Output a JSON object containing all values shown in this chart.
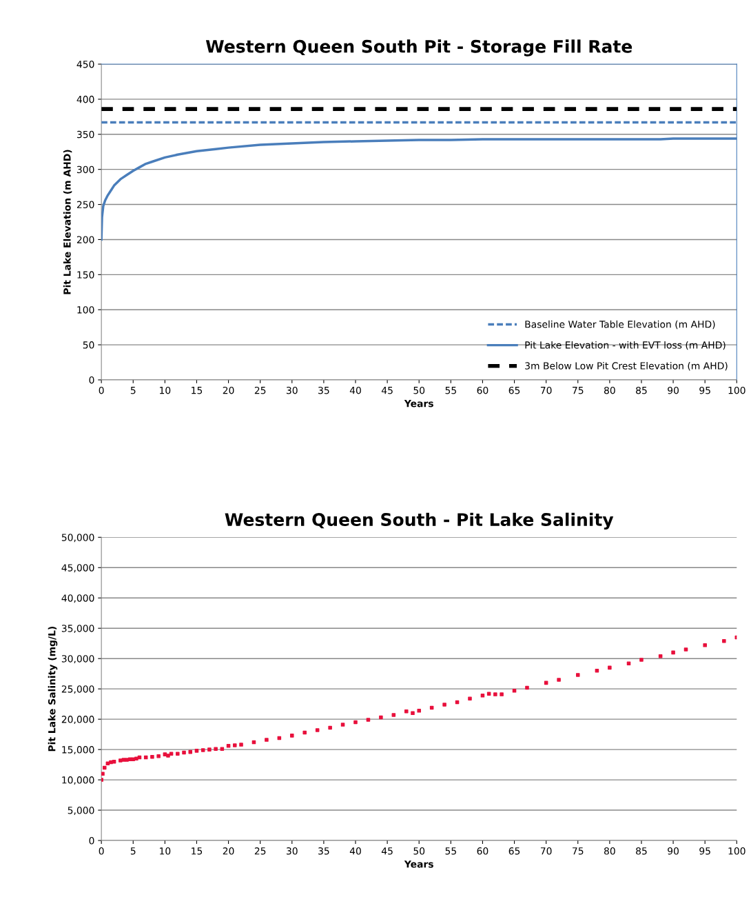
{
  "chart_data": [
    {
      "type": "line",
      "title": "Western Queen South Pit - Storage Fill Rate",
      "xlabel": "Years",
      "ylabel": "Pit Lake Elevation (m AHD)",
      "series": [
        {
          "name": "Baseline Water Table Elevation (m AHD)",
          "color": "#4a7ebb",
          "line_style": "dashed",
          "x": [
            0,
            100
          ],
          "values": [
            367,
            367
          ]
        },
        {
          "name": "Pit Lake Elevation - with EVT loss (m AHD)",
          "color": "#4a7ebb",
          "line_style": "solid",
          "x": [
            0,
            0.1,
            0.3,
            0.6,
            1,
            1.5,
            2,
            3,
            4,
            5,
            6,
            7,
            8,
            10,
            12,
            15,
            18,
            20,
            25,
            30,
            35,
            40,
            45,
            50,
            55,
            60,
            70,
            80,
            88,
            90,
            100
          ],
          "values": [
            200,
            232,
            248,
            256,
            263,
            270,
            277,
            286,
            292,
            298,
            303,
            308,
            311,
            317,
            321,
            326,
            329,
            331,
            335,
            337,
            339,
            340,
            341,
            342,
            342,
            343,
            343,
            343,
            343,
            344,
            344
          ]
        },
        {
          "name": "3m Below Low Pit Crest Elevation (m AHD)",
          "color": "#000000",
          "line_style": "dashed",
          "x": [
            0,
            100
          ],
          "values": [
            386,
            386
          ]
        }
      ],
      "xlim": [
        0,
        100
      ],
      "xticks": [
        0,
        5,
        10,
        15,
        20,
        25,
        30,
        35,
        40,
        45,
        50,
        55,
        60,
        65,
        70,
        75,
        80,
        85,
        90,
        95,
        100
      ],
      "ylim": [
        0,
        450
      ],
      "yticks": [
        0,
        50,
        100,
        150,
        200,
        250,
        300,
        350,
        400,
        450
      ],
      "grid": "y",
      "legend": "bottom right"
    },
    {
      "type": "scatter",
      "title": "Western Queen South - Pit Lake Salinity",
      "xlabel": "Years",
      "ylabel": "Pit Lake Salinity (mg/L)",
      "series": [
        {
          "color": "#e8103c",
          "x": [
            0,
            0.2,
            0.5,
            1,
            1.5,
            2,
            3,
            3.5,
            4,
            4.5,
            5,
            5.5,
            6,
            7,
            8,
            9,
            10,
            10.5,
            11,
            12,
            13,
            14,
            15,
            16,
            17,
            18,
            19,
            20,
            21,
            22,
            24,
            26,
            28,
            30,
            32,
            34,
            36,
            38,
            40,
            42,
            44,
            46,
            48,
            49,
            50,
            52,
            54,
            56,
            58,
            60,
            61,
            62,
            63,
            65,
            67,
            70,
            72,
            75,
            78,
            80,
            83,
            85,
            88,
            90,
            92,
            95,
            98,
            100
          ],
          "values": [
            10000,
            11000,
            12000,
            12700,
            12900,
            13000,
            13200,
            13300,
            13300,
            13400,
            13400,
            13500,
            13700,
            13700,
            13800,
            13900,
            14200,
            14000,
            14300,
            14300,
            14500,
            14600,
            14800,
            14900,
            15000,
            15100,
            15100,
            15600,
            15700,
            15800,
            16200,
            16600,
            16900,
            17300,
            17800,
            18200,
            18600,
            19100,
            19500,
            19900,
            20300,
            20700,
            21300,
            21000,
            21400,
            21900,
            22400,
            22800,
            23400,
            23900,
            24200,
            24100,
            24100,
            24700,
            25200,
            26000,
            26500,
            27300,
            28000,
            28500,
            29200,
            29800,
            30400,
            31000,
            31500,
            32200,
            32900,
            33500
          ]
        }
      ],
      "xlim": [
        0,
        100
      ],
      "xticks": [
        0,
        5,
        10,
        15,
        20,
        25,
        30,
        35,
        40,
        45,
        50,
        55,
        60,
        65,
        70,
        75,
        80,
        85,
        90,
        95,
        100
      ],
      "ylim": [
        0,
        50000
      ],
      "yticks": [
        0,
        {
          "value": 5000,
          "label": "5,000"
        },
        {
          "value": 10000,
          "label": "10,000"
        },
        {
          "value": 15000,
          "label": "15,000"
        },
        {
          "value": 20000,
          "label": "20,000"
        },
        {
          "value": 25000,
          "label": "25,000"
        },
        {
          "value": 30000,
          "label": "30,000"
        },
        {
          "value": 35000,
          "label": "35,000"
        },
        {
          "value": 40000,
          "label": "40,000"
        },
        {
          "value": 45000,
          "label": "45,000"
        },
        {
          "value": 50000,
          "label": "50,000"
        }
      ],
      "grid": "y",
      "marker": "square"
    }
  ]
}
